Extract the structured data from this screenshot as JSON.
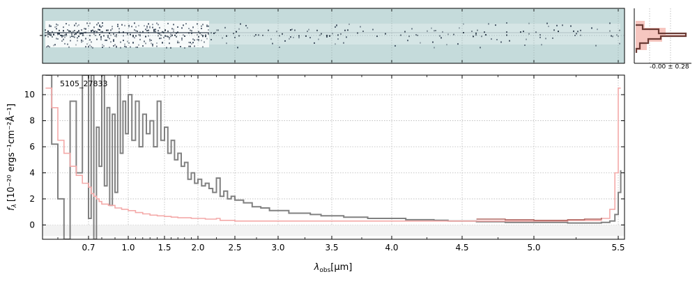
{
  "chart_data": {
    "type": "line",
    "object_label": "5105_27833",
    "xlabel_symbol": "λ",
    "xlabel_subscript": "obs",
    "xlabel_unit": "[μm]",
    "ylabel_prefix": "f",
    "ylabel_subscript": "λ",
    "ylabel_text": "[10⁻²⁰ ergs⁻¹cm⁻²Å⁻¹]",
    "x_ticks": [
      0.7,
      1.0,
      1.5,
      2.0,
      2.5,
      3.0,
      3.5,
      4.0,
      4.5,
      5.0,
      5.5
    ],
    "x_tick_labels": [
      "0.7",
      "1.0",
      "1.5",
      "2.0",
      "2.5",
      "3.0",
      "3.5",
      "4.0",
      "4.5",
      "5.0",
      "5.5"
    ],
    "y_ticks": [
      0,
      2,
      4,
      6,
      8,
      10
    ],
    "y_tick_labels": [
      "0",
      "2",
      "4",
      "6",
      "8",
      "10"
    ],
    "xlim": [
      0.55,
      5.55
    ],
    "ylim": [
      -1.1,
      11.5
    ],
    "grid": true,
    "series": [
      {
        "color": "#808080",
        "x": [
          0.56,
          0.58,
          0.6,
          0.62,
          0.64,
          0.66,
          0.68,
          0.7,
          0.72,
          0.74,
          0.76,
          0.78,
          0.8,
          0.82,
          0.84,
          0.86,
          0.88,
          0.9,
          0.92,
          0.94,
          0.96,
          0.98,
          1.0,
          1.05,
          1.1,
          1.15,
          1.2,
          1.25,
          1.3,
          1.35,
          1.4,
          1.45,
          1.5,
          1.55,
          1.6,
          1.65,
          1.7,
          1.75,
          1.8,
          1.85,
          1.9,
          1.95,
          2.0,
          2.05,
          2.1,
          2.15,
          2.2,
          2.25,
          2.3,
          2.35,
          2.4,
          2.45,
          2.5,
          2.6,
          2.7,
          2.8,
          2.9,
          3.0,
          3.1,
          3.2,
          3.3,
          3.4,
          3.5,
          3.6,
          3.7,
          3.8,
          3.9,
          4.0,
          4.1,
          4.2,
          4.3,
          4.4,
          4.5,
          4.6,
          4.7,
          4.8,
          4.9,
          5.0,
          5.1,
          5.2,
          5.3,
          5.4,
          5.45,
          5.48,
          5.5,
          5.52
        ],
        "y": [
          11.5,
          6.2,
          2.0,
          -1.1,
          9.5,
          4.0,
          11.5,
          0.5,
          11.5,
          -1.1,
          7.5,
          4.5,
          11.5,
          3.0,
          9.0,
          1.5,
          8.5,
          2.5,
          11.5,
          5.5,
          9.5,
          7.0,
          10.0,
          6.5,
          9.5,
          6.0,
          8.5,
          7.0,
          8.0,
          6.0,
          9.5,
          6.5,
          7.5,
          5.5,
          6.5,
          5.0,
          5.5,
          4.5,
          4.8,
          3.5,
          4.0,
          3.2,
          3.5,
          3.0,
          3.2,
          2.8,
          2.5,
          3.6,
          2.2,
          2.6,
          2.0,
          2.2,
          1.9,
          1.7,
          1.4,
          1.3,
          1.1,
          1.1,
          0.9,
          0.9,
          0.8,
          0.7,
          0.7,
          0.6,
          0.6,
          0.5,
          0.5,
          0.5,
          0.4,
          0.4,
          0.35,
          0.3,
          0.3,
          0.25,
          0.25,
          0.2,
          0.2,
          0.2,
          0.2,
          0.15,
          0.15,
          0.2,
          0.3,
          0.8,
          2.5,
          4.2
        ]
      },
      {
        "color": "#f4a9a8",
        "x": [
          0.56,
          0.58,
          0.6,
          0.62,
          0.64,
          0.66,
          0.68,
          0.7,
          0.72,
          0.74,
          0.76,
          0.78,
          0.8,
          0.85,
          0.9,
          0.95,
          1.0,
          1.1,
          1.2,
          1.3,
          1.4,
          1.5,
          1.6,
          1.7,
          1.8,
          1.9,
          2.0,
          2.1,
          2.2,
          2.25,
          2.3,
          2.4,
          2.5,
          2.6,
          2.7,
          2.8,
          2.9,
          3.0,
          3.2,
          3.4,
          3.6,
          3.8,
          4.0,
          4.2,
          4.4,
          4.6,
          4.8,
          5.0,
          5.2,
          5.4,
          5.45,
          5.48,
          5.5,
          5.52
        ],
        "y": [
          10.5,
          9.0,
          6.5,
          5.5,
          4.5,
          3.8,
          3.2,
          2.9,
          2.4,
          2.2,
          2.0,
          1.8,
          1.6,
          1.5,
          1.3,
          1.2,
          1.1,
          0.95,
          0.85,
          0.75,
          0.7,
          0.65,
          0.6,
          0.55,
          0.55,
          0.5,
          0.5,
          0.45,
          0.45,
          0.5,
          0.35,
          0.35,
          0.3,
          0.3,
          0.3,
          0.3,
          0.3,
          0.3,
          0.3,
          0.3,
          0.3,
          0.3,
          0.3,
          0.3,
          0.3,
          0.3,
          0.3,
          0.3,
          0.35,
          0.5,
          1.2,
          4.0,
          10.5,
          10.5
        ]
      },
      {
        "color": "#b06660",
        "x": [
          4.6,
          4.8,
          5.0,
          5.2,
          5.3,
          5.4
        ],
        "y": [
          0.45,
          0.4,
          0.35,
          0.4,
          0.45,
          0.55
        ]
      }
    ],
    "zero_line_y": 0,
    "side_label": "-0.00 ± 0.28",
    "image_colors": {
      "background": "#c5dbdb",
      "band": "#dce9ea",
      "dark": "#1c2a3a",
      "spectrum_dark": "#3d4c5d"
    }
  }
}
